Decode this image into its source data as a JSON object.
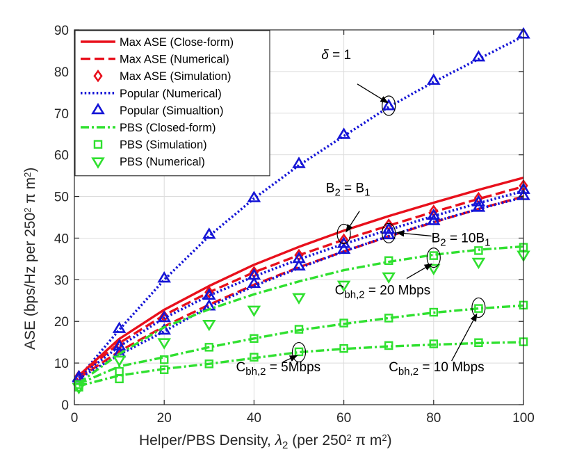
{
  "chart_data": {
    "type": "line",
    "xlabel": {
      "main": "Helper/PBS Density,",
      "sym": "λ",
      "sub": "2",
      "unit": "(per 250",
      "sup": "2",
      "pi": "π",
      "m": "m",
      "sup2": "2",
      "close": ")"
    },
    "ylabel": {
      "main": "ASE (bps/Hz per 250",
      "sup": "2",
      "pi": "π",
      "m": "m",
      "sup2": "2",
      "close": ")"
    },
    "xlim": [
      0,
      100
    ],
    "ylim": [
      0,
      90
    ],
    "xticks": [
      0,
      20,
      40,
      60,
      80,
      100
    ],
    "yticks": [
      0,
      10,
      20,
      30,
      40,
      50,
      60,
      70,
      80,
      90
    ],
    "grid": true,
    "legend_position": "top-left",
    "legend": [
      {
        "label": "Max ASE (Close-form)",
        "color": "#e8101c",
        "style": "solid",
        "marker": "none"
      },
      {
        "label": "Max ASE (Numerical)",
        "color": "#e8101c",
        "style": "dashed",
        "marker": "none"
      },
      {
        "label": "Max ASE (Simulation)",
        "color": "#e8101c",
        "style": "none",
        "marker": "diamond"
      },
      {
        "label": "Popular (Numerical)",
        "color": "#1414d6",
        "style": "dotted",
        "marker": "none"
      },
      {
        "label": "Popular (Simualtion)",
        "color": "#1414d6",
        "style": "none",
        "marker": "triangle-up"
      },
      {
        "label": "PBS (Closed-form)",
        "color": "#2fe02f",
        "style": "dashdot",
        "marker": "none"
      },
      {
        "label": "PBS (Simulation)",
        "color": "#2fe02f",
        "style": "none",
        "marker": "square"
      },
      {
        "label": "PBS (Numerical)",
        "color": "#2fe02f",
        "style": "none",
        "marker": "triangle-down"
      }
    ],
    "series": [
      {
        "name": "Popular delta=1 line",
        "color": "#1414d6",
        "style": "dotted",
        "x": [
          1,
          10,
          20,
          30,
          40,
          50,
          60,
          70,
          80,
          90,
          100
        ],
        "y": [
          6.5,
          18.0,
          30.0,
          40.5,
          49.5,
          57.5,
          64.5,
          71.5,
          77.5,
          83.0,
          88.5
        ]
      },
      {
        "name": "Popular delta=1 sim",
        "color": "#1414d6",
        "marker": "triangle-up",
        "x": [
          1,
          10,
          20,
          30,
          40,
          50,
          60,
          70,
          80,
          90,
          100
        ],
        "y": [
          6.5,
          18.2,
          30.3,
          40.8,
          49.6,
          57.8,
          64.8,
          71.7,
          77.8,
          83.4,
          88.9
        ]
      },
      {
        "name": "Max ASE B2=B1 closed",
        "color": "#e8101c",
        "style": "solid",
        "x": [
          1,
          10,
          20,
          30,
          40,
          50,
          60,
          70,
          80,
          90,
          100
        ],
        "y": [
          7.0,
          15.8,
          22.8,
          28.5,
          33.6,
          37.9,
          41.8,
          45.3,
          48.5,
          51.6,
          54.5
        ]
      },
      {
        "name": "Max ASE B2=B1 numerical",
        "color": "#e8101c",
        "style": "dashed",
        "x": [
          1,
          10,
          20,
          30,
          40,
          50,
          60,
          70,
          80,
          90,
          100
        ],
        "y": [
          6.8,
          14.8,
          21.5,
          27.0,
          31.8,
          35.9,
          39.6,
          43.0,
          46.3,
          49.4,
          52.4
        ]
      },
      {
        "name": "Max ASE B2=B1 sim",
        "color": "#e8101c",
        "marker": "diamond",
        "x": [
          1,
          10,
          20,
          30,
          40,
          50,
          60,
          70,
          80,
          90,
          100
        ],
        "y": [
          6.8,
          14.5,
          21.2,
          27.0,
          31.8,
          35.9,
          39.6,
          43.2,
          46.5,
          49.6,
          52.6
        ]
      },
      {
        "name": "Popular B2=B1 numerical",
        "color": "#1414d6",
        "style": "dotted",
        "x": [
          1,
          10,
          20,
          30,
          40,
          50,
          60,
          70,
          80,
          90,
          100
        ],
        "y": [
          6.6,
          14.0,
          20.8,
          26.2,
          30.8,
          34.9,
          38.6,
          42.0,
          45.3,
          48.4,
          51.3
        ]
      },
      {
        "name": "Popular B2=B1 sim",
        "color": "#1414d6",
        "marker": "triangle-up",
        "x": [
          1,
          10,
          20,
          30,
          40,
          50,
          60,
          70,
          80,
          90,
          100
        ],
        "y": [
          6.6,
          14.0,
          20.8,
          26.2,
          31.0,
          35.0,
          38.6,
          42.0,
          45.4,
          48.6,
          51.6
        ]
      },
      {
        "name": "Max ASE B2=10B1 numerical",
        "color": "#e8101c",
        "style": "dashed",
        "x": [
          1,
          10,
          20,
          30,
          40,
          50,
          60,
          70,
          80,
          90,
          100
        ],
        "y": [
          6.4,
          12.8,
          18.8,
          24.0,
          28.8,
          33.0,
          36.8,
          40.4,
          43.8,
          47.0,
          50.0
        ]
      },
      {
        "name": "Popular B2=10B1 numerical",
        "color": "#1414d6",
        "style": "dotted",
        "x": [
          1,
          10,
          20,
          30,
          40,
          50,
          60,
          70,
          80,
          90,
          100
        ],
        "y": [
          6.3,
          12.0,
          17.6,
          23.5,
          28.5,
          32.8,
          36.8,
          40.5,
          43.9,
          47.0,
          49.8
        ]
      },
      {
        "name": "Popular B2=10B1 sim",
        "color": "#1414d6",
        "marker": "triangle-up",
        "x": [
          1,
          10,
          20,
          30,
          40,
          50,
          60,
          70,
          80,
          90,
          100
        ],
        "y": [
          6.3,
          12.3,
          17.8,
          23.6,
          29.0,
          33.2,
          37.2,
          40.7,
          44.1,
          47.3,
          50.1
        ]
      },
      {
        "name": "PBS C=20 closed",
        "color": "#2fe02f",
        "style": "dashdot",
        "x": [
          1,
          10,
          20,
          30,
          40,
          50,
          60,
          70,
          80,
          90,
          100
        ],
        "y": [
          5.2,
          12.2,
          18.6,
          22.9,
          26.5,
          29.6,
          32.3,
          34.3,
          36.0,
          37.2,
          38.0
        ]
      },
      {
        "name": "PBS C=20 sim",
        "color": "#2fe02f",
        "marker": "square",
        "x": [
          70,
          80,
          90,
          100
        ],
        "y": [
          34.6,
          35.8,
          37.0,
          37.8
        ]
      },
      {
        "name": "PBS C=20 numerical",
        "color": "#2fe02f",
        "marker": "triangle-down",
        "x": [
          1,
          10,
          20,
          30,
          40,
          50,
          60,
          70,
          80,
          90,
          100
        ],
        "y": [
          4.2,
          10.8,
          15.0,
          19.4,
          22.8,
          25.8,
          28.8,
          30.8,
          32.8,
          34.3,
          36.0
        ]
      },
      {
        "name": "PBS C=10 closed",
        "color": "#2fe02f",
        "style": "dashdot",
        "x": [
          1,
          10,
          20,
          30,
          40,
          50,
          60,
          70,
          80,
          90,
          100
        ],
        "y": [
          5.0,
          9.2,
          11.4,
          13.8,
          15.9,
          17.9,
          19.4,
          20.8,
          22.1,
          23.1,
          23.8
        ]
      },
      {
        "name": "PBS C=10 sim",
        "color": "#2fe02f",
        "marker": "square",
        "x": [
          1,
          10,
          20,
          30,
          40,
          50,
          60,
          70,
          80,
          90,
          100
        ],
        "y": [
          4.8,
          8.0,
          10.8,
          13.8,
          15.9,
          18.1,
          19.6,
          20.8,
          22.2,
          23.1,
          23.9
        ]
      },
      {
        "name": "PBS C=5 closed",
        "color": "#2fe02f",
        "style": "dashdot",
        "x": [
          1,
          10,
          20,
          30,
          40,
          50,
          60,
          70,
          80,
          90,
          100
        ],
        "y": [
          4.5,
          7.0,
          8.6,
          9.8,
          11.2,
          12.6,
          13.4,
          14.0,
          14.4,
          14.8,
          15.0
        ]
      },
      {
        "name": "PBS C=5 sim",
        "color": "#2fe02f",
        "marker": "square",
        "x": [
          1,
          10,
          20,
          30,
          40,
          50,
          60,
          70,
          80,
          90,
          100
        ],
        "y": [
          4.2,
          6.2,
          8.4,
          9.8,
          11.4,
          12.7,
          13.5,
          14.2,
          14.6,
          14.9,
          15.1
        ]
      }
    ],
    "annotations": [
      {
        "name": "delta",
        "parts": [
          {
            "t": "δ",
            "style": "italic"
          },
          {
            "t": " = 1"
          }
        ],
        "text_at": [
          55,
          83
        ],
        "circle": [
          70,
          71.8
        ],
        "arrow_from": [
          63,
          77
        ],
        "arrow_to": [
          69.8,
          72.5
        ]
      },
      {
        "name": "b2-eq-b1",
        "parts": [
          {
            "t": "B"
          },
          {
            "t": "2",
            "style": "sub"
          },
          {
            "t": " = B"
          },
          {
            "t": "1",
            "style": "sub"
          }
        ],
        "text_at": [
          56,
          51
        ],
        "circle": [
          60,
          41.0
        ],
        "arrow_from": [
          63.5,
          46.5
        ],
        "arrow_to": [
          60.5,
          41.5
        ]
      },
      {
        "name": "b2-eq-10b1",
        "parts": [
          {
            "t": "B"
          },
          {
            "t": "2",
            "style": "sub"
          },
          {
            "t": " = 10B"
          },
          {
            "t": "1",
            "style": "sub"
          }
        ],
        "text_at": [
          79.5,
          39
        ],
        "circle": [
          70,
          41.2
        ],
        "arrow_from": [
          79.5,
          40.5
        ],
        "arrow_to": [
          71.8,
          41.3
        ]
      },
      {
        "name": "c20",
        "parts": [
          {
            "t": "C"
          },
          {
            "t": "bh,2",
            "style": "sub"
          },
          {
            "t": " = 20 Mbps"
          }
        ],
        "text_at": [
          58,
          26.5
        ],
        "circle": [
          80,
          35.3
        ],
        "arrow_from": [
          74,
          30.3
        ],
        "arrow_to": [
          79.6,
          33.8
        ]
      },
      {
        "name": "c10",
        "parts": [
          {
            "t": "C"
          },
          {
            "t": "bh,2",
            "style": "sub"
          },
          {
            "t": " = 10 Mbps"
          }
        ],
        "text_at": [
          70,
          8
        ],
        "circle": [
          90,
          23.3
        ],
        "arrow_from": [
          84,
          10.5
        ],
        "arrow_to": [
          89.6,
          21.8
        ]
      },
      {
        "name": "c5",
        "parts": [
          {
            "t": "C"
          },
          {
            "t": "bh,2",
            "style": "sub"
          },
          {
            "t": " = 5Mbps"
          }
        ],
        "text_at": [
          36,
          8
        ],
        "circle": [
          50,
          12.6
        ],
        "arrow_from": [
          46.5,
          10.3
        ],
        "arrow_to": [
          49.6,
          11.8
        ]
      }
    ]
  }
}
